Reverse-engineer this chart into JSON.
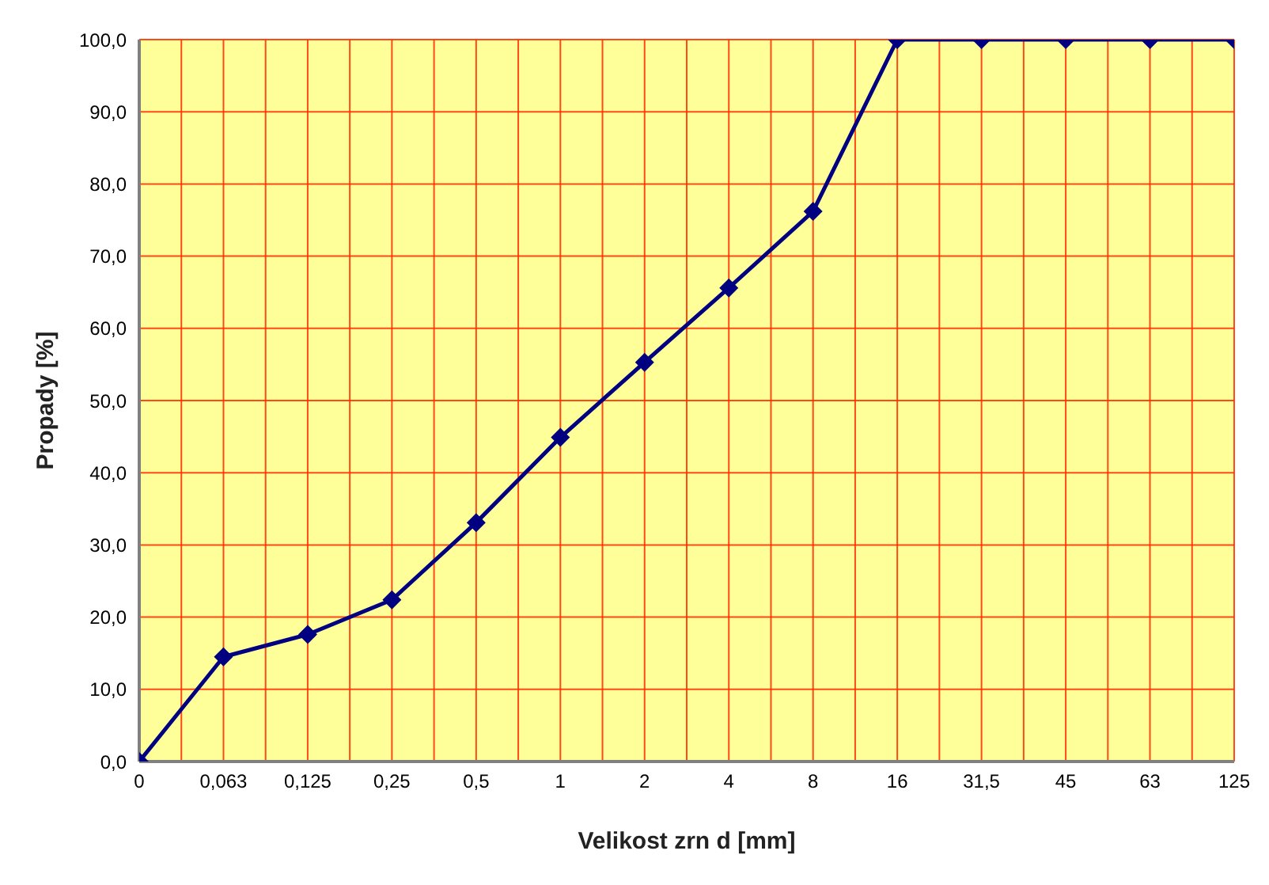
{
  "chart_data": {
    "type": "line",
    "xlabel": "Velikost zrn d [mm]",
    "ylabel": "Propady [%]",
    "categories": [
      "0",
      "0,063",
      "0,125",
      "0,25",
      "0,5",
      "1",
      "2",
      "4",
      "8",
      "16",
      "31,5",
      "45",
      "63",
      "125"
    ],
    "series": [
      {
        "color": "#000080",
        "values": [
          0,
          14.5,
          17.6,
          22.4,
          33.1,
          44.9,
          55.3,
          65.6,
          76.2,
          100,
          100,
          100,
          100,
          100
        ]
      }
    ],
    "ylim": [
      0,
      100
    ],
    "yticks": [
      {
        "value": 0,
        "label": "0,0"
      },
      {
        "value": 10,
        "label": "10,0"
      },
      {
        "value": 20,
        "label": "20,0"
      },
      {
        "value": 30,
        "label": "30,0"
      },
      {
        "value": 40,
        "label": "40,0"
      },
      {
        "value": 50,
        "label": "50,0"
      },
      {
        "value": 60,
        "label": "60,0"
      },
      {
        "value": 70,
        "label": "70,0"
      },
      {
        "value": 80,
        "label": "80,0"
      },
      {
        "value": 90,
        "label": "90,0"
      },
      {
        "value": 100,
        "label": "100,0"
      }
    ],
    "grid": true,
    "marker": "diamond",
    "line_style": "solid",
    "legend": false
  }
}
